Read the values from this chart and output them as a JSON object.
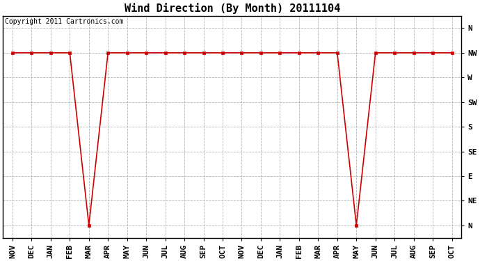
{
  "title": "Wind Direction (By Month) 20111104",
  "copyright_text": "Copyright 2011 Cartronics.com",
  "x_labels": [
    "NOV",
    "DEC",
    "JAN",
    "FEB",
    "MAR",
    "APR",
    "MAY",
    "JUN",
    "JUL",
    "AUG",
    "SEP",
    "OCT",
    "NOV",
    "DEC",
    "JAN",
    "FEB",
    "MAR",
    "APR",
    "MAY",
    "JUN",
    "JUL",
    "AUG",
    "SEP",
    "OCT"
  ],
  "y_tick_labels_bottom_to_top": [
    "N",
    "NE",
    "E",
    "SE",
    "S",
    "SW",
    "W",
    "NW",
    "N"
  ],
  "line_color": "#cc0000",
  "marker": "s",
  "marker_size": 3,
  "background_color": "#ffffff",
  "grid_color": "#aaaaaa",
  "data_y": [
    7,
    7,
    7,
    7,
    0,
    7,
    7,
    7,
    7,
    7,
    7,
    7,
    7,
    7,
    7,
    7,
    7,
    7,
    0,
    7,
    7,
    7,
    7,
    7
  ],
  "title_fontsize": 11,
  "axis_label_fontsize": 8,
  "copyright_fontsize": 7,
  "figwidth": 6.9,
  "figheight": 3.75,
  "dpi": 100
}
